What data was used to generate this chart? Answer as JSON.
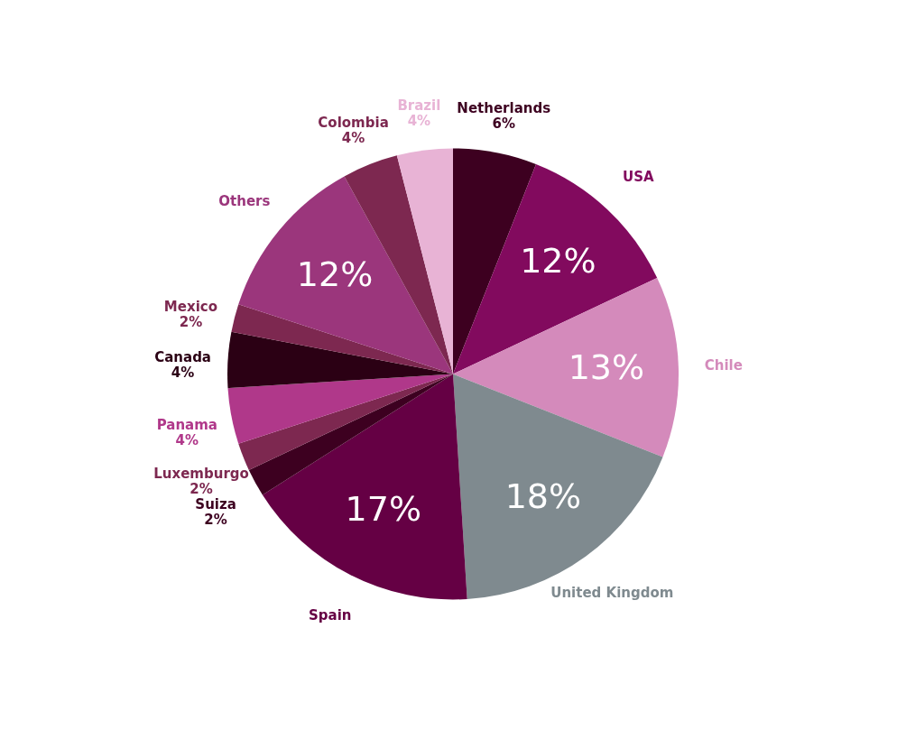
{
  "chart_data": {
    "type": "pie",
    "categories": [
      "Netherlands",
      "USA",
      "Chile",
      "United Kingdom",
      "Spain",
      "Suiza",
      "Luxemburgo",
      "Panama",
      "Canada",
      "Mexico",
      "Others",
      "Colombia",
      "Brazil"
    ],
    "values": [
      6,
      12,
      13,
      18,
      17,
      2,
      2,
      4,
      4,
      2,
      12,
      4,
      4
    ],
    "value_labels": [
      "6%",
      "12%",
      "13%",
      "18%",
      "17%",
      "2%",
      "2%",
      "4%",
      "4%",
      "2%",
      "12%",
      "4%",
      "4%"
    ],
    "colors": [
      "#3d0020",
      "#820a5e",
      "#d48abb",
      "#7f8a8f",
      "#650044",
      "#3d0020",
      "#7d2850",
      "#b0388a",
      "#2b0014",
      "#7d2850",
      "#9b367c",
      "#7d2850",
      "#e8b3d5"
    ],
    "legend": false
  }
}
